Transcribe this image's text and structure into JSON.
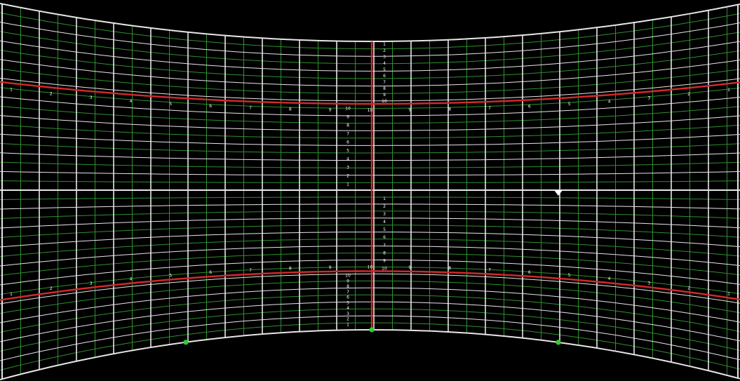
{
  "colors": {
    "background": "#000000",
    "major_grid": "#e6e6e6",
    "minor_grid": "#2f8f2f",
    "reference_lines": "#d42a2a",
    "control_point": "#2fcf2f",
    "cursor": "#ffffff"
  },
  "cursor_icon": "arrow-cursor-icon",
  "control_point_icon": "warp-control-point-icon",
  "upper_band_labels": [
    "1",
    "2",
    "3",
    "4",
    "5",
    "6",
    "7",
    "8",
    "9",
    "10",
    "9",
    "8",
    "7",
    "6",
    "5",
    "4",
    "3",
    "2",
    "1"
  ],
  "lower_band_labels": [
    "1",
    "2",
    "3",
    "4",
    "5",
    "6",
    "7",
    "8",
    "9",
    "10",
    "9",
    "8",
    "7",
    "6",
    "5",
    "4",
    "3",
    "2",
    "1"
  ],
  "center_column_top_labels": [
    "1",
    "2",
    "3",
    "4",
    "5",
    "6",
    "7",
    "8",
    "9",
    "10"
  ],
  "center_column_upper_mid_labels": [
    "10",
    "9",
    "8",
    "7",
    "6",
    "5",
    "4",
    "3",
    "2",
    "1"
  ],
  "center_column_lower_mid_labels": [
    "1",
    "2",
    "3",
    "4",
    "5",
    "6",
    "7",
    "8",
    "9",
    "10"
  ],
  "center_column_bottom_labels": [
    "10",
    "9",
    "8",
    "7",
    "6",
    "5",
    "4",
    "3",
    "2",
    "1"
  ]
}
